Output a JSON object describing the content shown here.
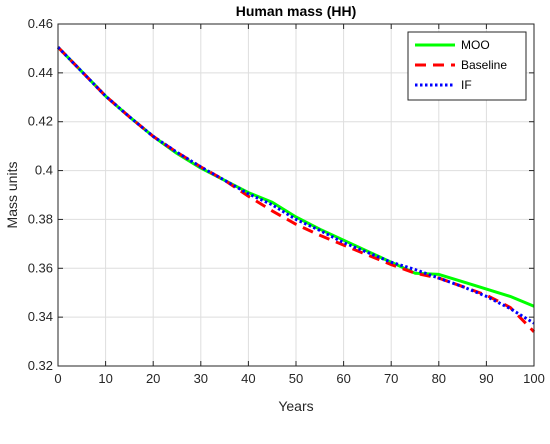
{
  "chart_data": {
    "type": "line",
    "title": "Human mass (HH)",
    "xlabel": "Years",
    "ylabel": "Mass units",
    "xlim": [
      0,
      100
    ],
    "ylim": [
      0.32,
      0.46
    ],
    "xticks": [
      "0",
      "10",
      "20",
      "30",
      "40",
      "50",
      "60",
      "70",
      "80",
      "90",
      "100"
    ],
    "yticks": [
      "0.32",
      "0.34",
      "0.36",
      "0.38",
      "0.4",
      "0.42",
      "0.44",
      "0.46"
    ],
    "grid": true,
    "legend_position": "top-right",
    "series": [
      {
        "name": "MOO",
        "color": "#00ff00",
        "style": "solid",
        "x": [
          0,
          5,
          10,
          15,
          20,
          25,
          30,
          35,
          40,
          45,
          50,
          55,
          60,
          65,
          70,
          75,
          80,
          85,
          90,
          95,
          100
        ],
        "y": [
          0.4505,
          0.4405,
          0.4305,
          0.422,
          0.414,
          0.407,
          0.401,
          0.396,
          0.391,
          0.387,
          0.381,
          0.376,
          0.3715,
          0.367,
          0.3625,
          0.358,
          0.3575,
          0.3545,
          0.3515,
          0.3485,
          0.3445
        ]
      },
      {
        "name": "Baseline",
        "color": "#ff0000",
        "style": "dashed",
        "x": [
          0,
          5,
          10,
          15,
          20,
          25,
          30,
          35,
          40,
          45,
          50,
          55,
          60,
          65,
          70,
          75,
          80,
          85,
          90,
          95,
          100
        ],
        "y": [
          0.4505,
          0.4405,
          0.4305,
          0.422,
          0.414,
          0.4075,
          0.4015,
          0.396,
          0.3895,
          0.3835,
          0.378,
          0.3735,
          0.3695,
          0.3655,
          0.3615,
          0.358,
          0.356,
          0.3525,
          0.349,
          0.344,
          0.334
        ]
      },
      {
        "name": "IF",
        "color": "#0000ff",
        "style": "dotted",
        "x": [
          0,
          5,
          10,
          15,
          20,
          25,
          30,
          35,
          40,
          45,
          50,
          55,
          60,
          65,
          70,
          75,
          80,
          85,
          90,
          95,
          100
        ],
        "y": [
          0.4505,
          0.4405,
          0.4305,
          0.422,
          0.414,
          0.4075,
          0.4015,
          0.396,
          0.3905,
          0.386,
          0.38,
          0.3755,
          0.3705,
          0.3665,
          0.3625,
          0.3595,
          0.356,
          0.3525,
          0.3485,
          0.3435,
          0.3375
        ]
      }
    ]
  }
}
